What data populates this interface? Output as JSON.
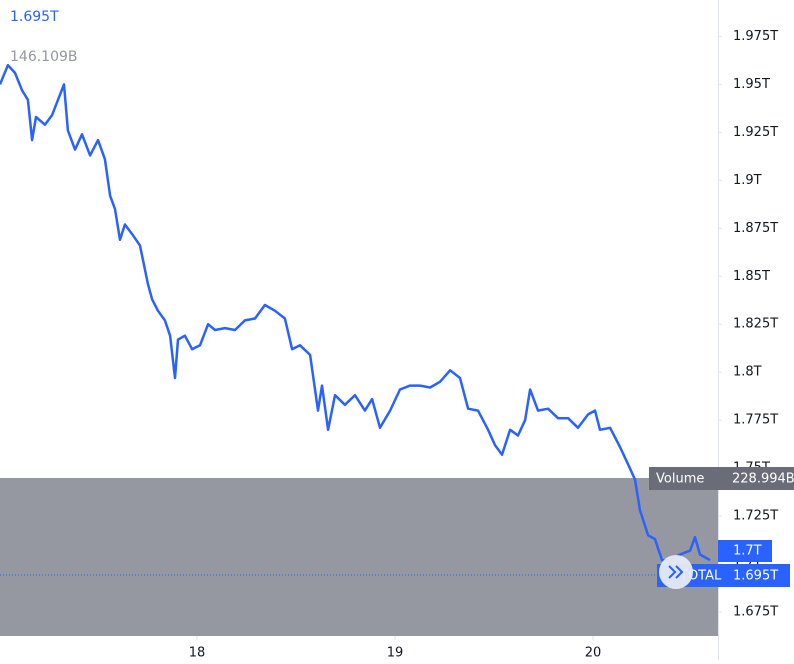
{
  "chart_data": {
    "type": "line",
    "price_label": "1.695T",
    "volume_label": "146.109B",
    "volume_name": "Volume",
    "volume_value": "228.994B",
    "marker_labels": [
      "1.7T",
      "1.695T"
    ],
    "symbol": "TOTAL",
    "xlim": [
      17.005,
      20.631
    ],
    "xticks": [
      18,
      19,
      20
    ],
    "ylim": [
      1.6625,
      1.994
    ],
    "yticks": [
      {
        "value": 1.975,
        "label": "1.975T"
      },
      {
        "value": 1.95,
        "label": "1.95T"
      },
      {
        "value": 1.925,
        "label": "1.925T"
      },
      {
        "value": 1.9,
        "label": "1.9T"
      },
      {
        "value": 1.875,
        "label": "1.875T"
      },
      {
        "value": 1.85,
        "label": "1.85T"
      },
      {
        "value": 1.825,
        "label": "1.825T"
      },
      {
        "value": 1.8,
        "label": "1.8T"
      },
      {
        "value": 1.775,
        "label": "1.775T"
      },
      {
        "value": 1.75,
        "label": "1.75T"
      },
      {
        "value": 1.725,
        "label": "1.725T"
      },
      {
        "value": 1.7,
        "label": "1.7T"
      },
      {
        "value": 1.675,
        "label": "1.675T"
      }
    ],
    "series": [
      {
        "color": "#2962ff",
        "x": [
          17.005,
          17.045,
          17.081,
          17.116,
          17.146,
          17.167,
          17.187,
          17.232,
          17.268,
          17.298,
          17.328,
          17.348,
          17.384,
          17.419,
          17.46,
          17.5,
          17.535,
          17.561,
          17.586,
          17.611,
          17.636,
          17.672,
          17.712,
          17.752,
          17.773,
          17.803,
          17.838,
          17.864,
          17.889,
          17.904,
          17.939,
          17.975,
          18.015,
          18.056,
          18.091,
          18.141,
          18.192,
          18.242,
          18.293,
          18.343,
          18.394,
          18.444,
          18.48,
          18.52,
          18.571,
          18.611,
          18.631,
          18.662,
          18.697,
          18.747,
          18.798,
          18.848,
          18.884,
          18.924,
          18.975,
          19.025,
          19.076,
          19.126,
          19.177,
          19.227,
          19.278,
          19.328,
          19.369,
          19.419,
          19.47,
          19.505,
          19.54,
          19.581,
          19.621,
          19.657,
          19.682,
          19.722,
          19.773,
          19.823,
          19.874,
          19.924,
          19.975,
          20.01,
          20.035,
          20.086,
          20.136,
          20.177,
          20.212,
          20.237,
          20.278,
          20.313,
          20.348,
          20.389,
          20.439,
          20.49,
          20.515,
          20.54,
          20.591
        ],
        "values": [
          1.95,
          1.96,
          1.956,
          1.947,
          1.942,
          1.921,
          1.933,
          1.929,
          1.934,
          1.942,
          1.95,
          1.926,
          1.916,
          1.924,
          1.913,
          1.921,
          1.911,
          1.892,
          1.885,
          1.869,
          1.877,
          1.872,
          1.866,
          1.846,
          1.838,
          1.832,
          1.827,
          1.819,
          1.797,
          1.817,
          1.819,
          1.812,
          1.814,
          1.825,
          1.822,
          1.823,
          1.822,
          1.827,
          1.828,
          1.835,
          1.832,
          1.828,
          1.812,
          1.814,
          1.809,
          1.78,
          1.793,
          1.77,
          1.788,
          1.783,
          1.788,
          1.78,
          1.786,
          1.771,
          1.78,
          1.791,
          1.793,
          1.793,
          1.792,
          1.795,
          1.801,
          1.797,
          1.781,
          1.78,
          1.77,
          1.762,
          1.757,
          1.77,
          1.767,
          1.775,
          1.791,
          1.78,
          1.781,
          1.776,
          1.776,
          1.771,
          1.778,
          1.78,
          1.77,
          1.771,
          1.761,
          1.752,
          1.744,
          1.728,
          1.715,
          1.713,
          1.702,
          1.702,
          1.705,
          1.707,
          1.714,
          1.705,
          1.702
        ]
      }
    ]
  }
}
